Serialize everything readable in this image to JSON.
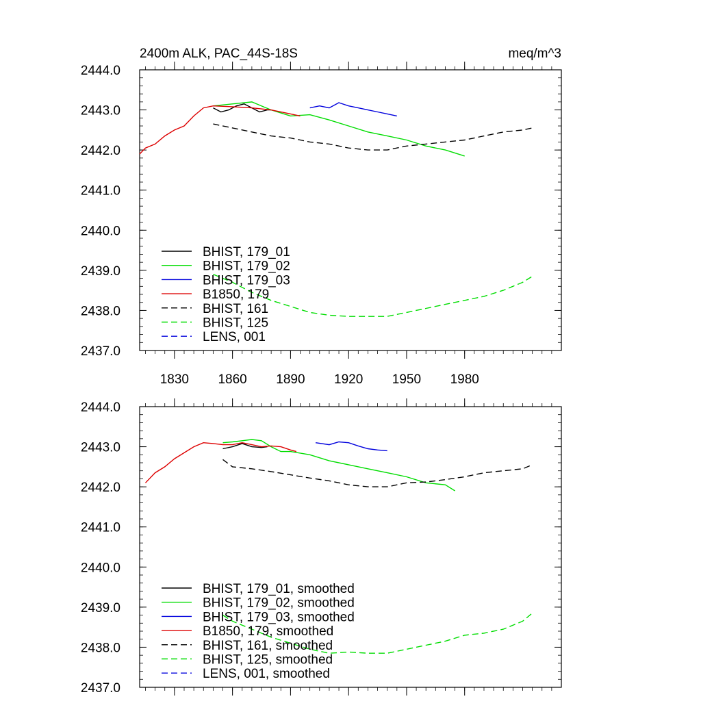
{
  "colors": {
    "black": "#000000",
    "green": "#00dd00",
    "blue": "#0000dd",
    "red": "#dd0000"
  },
  "chart_data": [
    {
      "type": "line",
      "title": "2400m ALK, PAC_44S-18S",
      "units": "meq/m^3",
      "xlim": [
        1812,
        2030
      ],
      "ylim": [
        2437.0,
        2444.0
      ],
      "x_ticks": [
        1830,
        1860,
        1890,
        1920,
        1950,
        1980
      ],
      "x_tick_labels": [
        "1830",
        "1860",
        "1890",
        "1920",
        "1950",
        "1980"
      ],
      "y_ticks": [
        2437.0,
        2438.0,
        2439.0,
        2440.0,
        2441.0,
        2442.0,
        2443.0,
        2444.0
      ],
      "y_tick_labels": [
        "2437.0",
        "2438.0",
        "2439.0",
        "2440.0",
        "2441.0",
        "2442.0",
        "2443.0",
        "2444.0"
      ],
      "legend_position": "bottom-left",
      "series": [
        {
          "name": "BHIST, 179_01",
          "color": "#000000",
          "dash": "solid",
          "x": [
            1850,
            1854,
            1858,
            1862,
            1866,
            1870,
            1874,
            1878,
            1880
          ],
          "y": [
            2443.05,
            2442.95,
            2443.0,
            2443.1,
            2443.15,
            2443.05,
            2442.95,
            2443.0,
            2443.0
          ]
        },
        {
          "name": "BHIST, 179_02",
          "color": "#00dd00",
          "dash": "solid",
          "x": [
            1850,
            1860,
            1870,
            1880,
            1890,
            1900,
            1910,
            1920,
            1930,
            1940,
            1950,
            1960,
            1970,
            1980
          ],
          "y": [
            2443.1,
            2443.15,
            2443.2,
            2443.0,
            2442.85,
            2442.88,
            2442.75,
            2442.6,
            2442.45,
            2442.35,
            2442.25,
            2442.1,
            2442.0,
            2441.85
          ]
        },
        {
          "name": "BHIST, 179_03",
          "color": "#0000dd",
          "dash": "solid",
          "x": [
            1900,
            1905,
            1910,
            1915,
            1920,
            1925,
            1930,
            1935,
            1940,
            1945
          ],
          "y": [
            2443.05,
            2443.1,
            2443.05,
            2443.18,
            2443.1,
            2443.05,
            2443.0,
            2442.95,
            2442.9,
            2442.85
          ]
        },
        {
          "name": "B1850, 179",
          "color": "#dd0000",
          "dash": "solid",
          "x": [
            1812,
            1815,
            1820,
            1825,
            1830,
            1835,
            1840,
            1845,
            1850,
            1860,
            1870,
            1880,
            1890,
            1895
          ],
          "y": [
            2441.9,
            2442.05,
            2442.15,
            2442.35,
            2442.5,
            2442.6,
            2442.85,
            2443.05,
            2443.1,
            2443.08,
            2443.05,
            2443.0,
            2442.9,
            2442.85
          ]
        },
        {
          "name": "BHIST, 161",
          "color": "#000000",
          "dash": "dashed",
          "x": [
            1850,
            1860,
            1870,
            1880,
            1890,
            1900,
            1910,
            1920,
            1930,
            1940,
            1950,
            1960,
            1970,
            1980,
            1990,
            2000,
            2010,
            2015
          ],
          "y": [
            2442.65,
            2442.55,
            2442.45,
            2442.35,
            2442.3,
            2442.2,
            2442.15,
            2442.05,
            2442.0,
            2442.0,
            2442.1,
            2442.15,
            2442.2,
            2442.25,
            2442.35,
            2442.45,
            2442.5,
            2442.55
          ]
        },
        {
          "name": "BHIST, 125",
          "color": "#00dd00",
          "dash": "dashed",
          "x": [
            1850,
            1860,
            1870,
            1880,
            1890,
            1900,
            1910,
            1920,
            1930,
            1940,
            1950,
            1960,
            1970,
            1980,
            1990,
            2000,
            2010,
            2015
          ],
          "y": [
            2438.9,
            2438.7,
            2438.45,
            2438.25,
            2438.1,
            2437.95,
            2437.88,
            2437.85,
            2437.85,
            2437.85,
            2437.95,
            2438.05,
            2438.15,
            2438.25,
            2438.35,
            2438.5,
            2438.7,
            2438.85
          ]
        },
        {
          "name": "LENS, 001",
          "color": "#0000dd",
          "dash": "dashed",
          "x": [],
          "y": []
        }
      ]
    },
    {
      "type": "line",
      "xlim": [
        1812,
        2030
      ],
      "ylim": [
        2437.0,
        2444.0
      ],
      "x_ticks": [
        1830,
        1860,
        1890,
        1920,
        1950,
        1980
      ],
      "y_ticks": [
        2437.0,
        2438.0,
        2439.0,
        2440.0,
        2441.0,
        2442.0,
        2443.0,
        2444.0
      ],
      "y_tick_labels": [
        "2437.0",
        "2438.0",
        "2439.0",
        "2440.0",
        "2441.0",
        "2442.0",
        "2443.0",
        "2444.0"
      ],
      "legend_position": "bottom-left",
      "series": [
        {
          "name": "BHIST, 179_01, smoothed",
          "color": "#000000",
          "dash": "solid",
          "x": [
            1855,
            1860,
            1865,
            1870,
            1875,
            1878
          ],
          "y": [
            2442.95,
            2443.0,
            2443.08,
            2443.0,
            2442.98,
            2443.0
          ]
        },
        {
          "name": "BHIST, 179_02, smoothed",
          "color": "#00dd00",
          "dash": "solid",
          "x": [
            1855,
            1860,
            1865,
            1870,
            1875,
            1880,
            1885,
            1890,
            1900,
            1910,
            1920,
            1930,
            1940,
            1950,
            1960,
            1970,
            1975
          ],
          "y": [
            2443.1,
            2443.12,
            2443.15,
            2443.18,
            2443.15,
            2443.0,
            2442.88,
            2442.88,
            2442.8,
            2442.65,
            2442.55,
            2442.45,
            2442.35,
            2442.25,
            2442.1,
            2442.05,
            2441.9
          ]
        },
        {
          "name": "BHIST, 179_03, smoothed",
          "color": "#0000dd",
          "dash": "solid",
          "x": [
            1903,
            1910,
            1915,
            1920,
            1925,
            1930,
            1935,
            1940
          ],
          "y": [
            2443.1,
            2443.05,
            2443.12,
            2443.1,
            2443.02,
            2442.95,
            2442.92,
            2442.9
          ]
        },
        {
          "name": "B1850, 179, smoothed",
          "color": "#dd0000",
          "dash": "solid",
          "x": [
            1815,
            1820,
            1825,
            1830,
            1835,
            1840,
            1845,
            1850,
            1855,
            1860,
            1865,
            1870,
            1875,
            1880,
            1885,
            1890,
            1893
          ],
          "y": [
            2442.1,
            2442.35,
            2442.5,
            2442.7,
            2442.85,
            2443.0,
            2443.1,
            2443.08,
            2443.05,
            2443.05,
            2443.1,
            2443.05,
            2443.0,
            2443.02,
            2443.0,
            2442.92,
            2442.88
          ]
        },
        {
          "name": "BHIST, 161, smoothed",
          "color": "#000000",
          "dash": "dashed",
          "x": [
            1855,
            1860,
            1870,
            1880,
            1890,
            1900,
            1910,
            1920,
            1930,
            1940,
            1950,
            1960,
            1970,
            1980,
            1990,
            2000,
            2010,
            2015
          ],
          "y": [
            2442.68,
            2442.5,
            2442.45,
            2442.38,
            2442.3,
            2442.22,
            2442.15,
            2442.05,
            2442.0,
            2442.0,
            2442.1,
            2442.12,
            2442.18,
            2442.25,
            2442.35,
            2442.4,
            2442.45,
            2442.55
          ]
        },
        {
          "name": "BHIST, 125, smoothed",
          "color": "#00dd00",
          "dash": "dashed",
          "x": [
            1855,
            1860,
            1870,
            1880,
            1890,
            1900,
            1910,
            1920,
            1930,
            1940,
            1950,
            1960,
            1970,
            1980,
            1990,
            2000,
            2010,
            2015
          ],
          "y": [
            2438.8,
            2438.65,
            2438.45,
            2438.25,
            2438.1,
            2437.95,
            2437.85,
            2437.88,
            2437.85,
            2437.85,
            2437.95,
            2438.05,
            2438.15,
            2438.3,
            2438.35,
            2438.45,
            2438.65,
            2438.85
          ]
        },
        {
          "name": "LENS, 001, smoothed",
          "color": "#0000dd",
          "dash": "dashed",
          "x": [],
          "y": []
        }
      ]
    }
  ]
}
